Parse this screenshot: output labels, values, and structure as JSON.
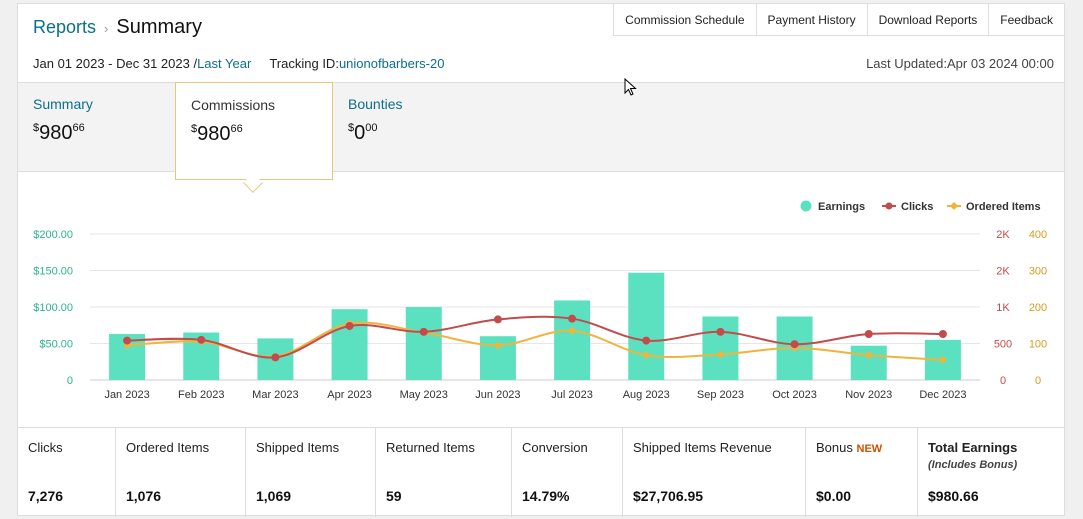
{
  "header": {
    "breadcrumb_root": "Reports",
    "breadcrumb_sep": "›",
    "title": "Summary",
    "nav": [
      "Commission Schedule",
      "Payment History",
      "Download Reports",
      "Feedback"
    ]
  },
  "subrow": {
    "date_range": "Jan 01 2023 - Dec 31 2023 /",
    "period_link": "Last Year",
    "tracking_label": "Tracking ID:",
    "tracking_id": "unionofbarbers-20",
    "last_updated": "Last Updated:Apr 03 2024 00:00"
  },
  "tabs": [
    {
      "label": "Summary",
      "currency": "$",
      "whole": "980",
      "cents": "66"
    },
    {
      "label": "Commissions",
      "currency": "$",
      "whole": "980",
      "cents": "66"
    },
    {
      "label": "Bounties",
      "currency": "$",
      "whole": "0",
      "cents": "00"
    }
  ],
  "chart_data": {
    "type": "bar",
    "categories": [
      "Jan 2023",
      "Feb 2023",
      "Mar 2023",
      "Apr 2023",
      "May 2023",
      "Jun 2023",
      "Jul 2023",
      "Aug 2023",
      "Sep 2023",
      "Oct 2023",
      "Nov 2023",
      "Dec 2023"
    ],
    "series": [
      {
        "name": "Earnings",
        "type": "bar",
        "axis": "left",
        "color": "#5ce1c0",
        "values": [
          63,
          65,
          57,
          97,
          100,
          60,
          109,
          147,
          87,
          87,
          47,
          55
        ]
      },
      {
        "name": "Clicks",
        "type": "line",
        "axis": "right1",
        "color": "#c44b4b",
        "values": [
          540,
          550,
          310,
          740,
          660,
          830,
          840,
          540,
          660,
          490,
          630,
          630
        ]
      },
      {
        "name": "Ordered Items",
        "type": "line",
        "axis": "right2",
        "color": "#f0b43c",
        "values": [
          95,
          105,
          65,
          155,
          130,
          95,
          135,
          68,
          70,
          88,
          68,
          55
        ]
      }
    ],
    "left_ticks": [
      "$200.00",
      "$150.00",
      "$100.00",
      "$50.00",
      "0"
    ],
    "ylim_left": [
      0,
      200
    ],
    "right1_ticks": [
      "2K",
      "2K",
      "1K",
      "500",
      "0"
    ],
    "ylim_right1": [
      0,
      2000
    ],
    "right2_ticks": [
      "400",
      "300",
      "200",
      "100",
      "0"
    ],
    "ylim_right2": [
      0,
      400
    ],
    "colors": {
      "left_axis": "#2bb58f",
      "right1_axis": "#c44b4b",
      "right2_axis": "#d89a20"
    },
    "legend": "top-right",
    "grid": true
  },
  "stats": [
    {
      "label": "Clicks",
      "value": "7,276"
    },
    {
      "label": "Ordered Items",
      "value": "1,076"
    },
    {
      "label": "Shipped Items",
      "value": "1,069"
    },
    {
      "label": "Returned Items",
      "value": "59"
    },
    {
      "label": "Conversion",
      "value": "14.79%"
    },
    {
      "label": "Shipped Items Revenue",
      "value": "$27,706.95"
    },
    {
      "label": "Bonus",
      "badge": "NEW",
      "value": "$0.00"
    },
    {
      "label": "Total Earnings",
      "sub": "(Includes Bonus)",
      "value": "$980.66"
    }
  ]
}
